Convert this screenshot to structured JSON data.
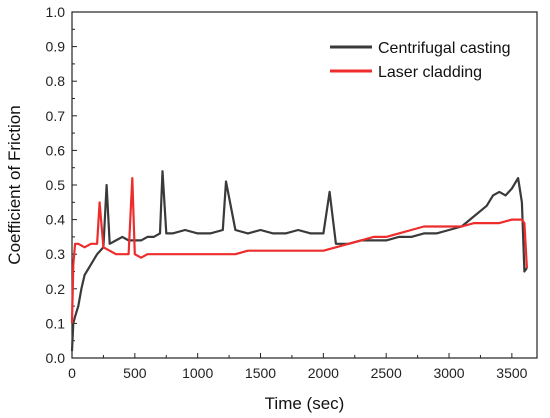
{
  "chart_data": {
    "type": "line",
    "title": "",
    "xlabel": "Time (sec)",
    "ylabel": "Coefficient of Friction",
    "xlim": [
      0,
      3700
    ],
    "ylim": [
      0,
      1.0
    ],
    "x_ticks": [
      0,
      500,
      1000,
      1500,
      2000,
      2500,
      3000,
      3500
    ],
    "x_tick_labels": [
      "0",
      "500",
      "1000",
      "1500",
      "2000",
      "2500",
      "3000",
      "3500"
    ],
    "y_ticks": [
      0,
      0.1,
      0.2,
      0.3,
      0.4,
      0.5,
      0.6,
      0.7,
      0.8,
      0.9,
      1.0
    ],
    "y_tick_labels": [
      "0.0",
      "0.1",
      "0.2",
      "0.3",
      "0.4",
      "0.5",
      "0.6",
      "0.7",
      "0.8",
      "0.9",
      "1.0"
    ],
    "grid": false,
    "legend_position": "top-right",
    "series": [
      {
        "name": "Centrifugal casting",
        "color": "#3a3a3a",
        "x": [
          0,
          10,
          25,
          50,
          75,
          100,
          150,
          200,
          250,
          275,
          300,
          350,
          400,
          450,
          500,
          550,
          600,
          650,
          700,
          720,
          750,
          800,
          900,
          1000,
          1100,
          1200,
          1225,
          1300,
          1400,
          1500,
          1600,
          1700,
          1800,
          1900,
          2000,
          2050,
          2100,
          2200,
          2300,
          2400,
          2500,
          2600,
          2700,
          2800,
          2900,
          3000,
          3100,
          3200,
          3300,
          3350,
          3400,
          3450,
          3500,
          3550,
          3580,
          3600,
          3620
        ],
        "y": [
          0.02,
          0.1,
          0.12,
          0.15,
          0.2,
          0.24,
          0.27,
          0.3,
          0.32,
          0.5,
          0.33,
          0.34,
          0.35,
          0.34,
          0.34,
          0.34,
          0.35,
          0.35,
          0.36,
          0.54,
          0.36,
          0.36,
          0.37,
          0.36,
          0.36,
          0.37,
          0.51,
          0.37,
          0.36,
          0.37,
          0.36,
          0.36,
          0.37,
          0.36,
          0.36,
          0.48,
          0.33,
          0.33,
          0.34,
          0.34,
          0.34,
          0.35,
          0.35,
          0.36,
          0.36,
          0.37,
          0.38,
          0.41,
          0.44,
          0.47,
          0.48,
          0.47,
          0.49,
          0.52,
          0.45,
          0.25,
          0.26
        ]
      },
      {
        "name": "Laser cladding",
        "color": "#ee2c2c",
        "x": [
          0,
          10,
          25,
          50,
          100,
          150,
          200,
          220,
          250,
          300,
          350,
          400,
          450,
          480,
          500,
          550,
          600,
          650,
          700,
          800,
          900,
          1000,
          1100,
          1200,
          1300,
          1400,
          1500,
          1600,
          1700,
          1800,
          1900,
          2000,
          2100,
          2200,
          2300,
          2400,
          2500,
          2600,
          2700,
          2800,
          2900,
          3000,
          3100,
          3200,
          3300,
          3400,
          3500,
          3550,
          3580,
          3600,
          3620
        ],
        "y": [
          0.1,
          0.27,
          0.33,
          0.33,
          0.32,
          0.33,
          0.33,
          0.45,
          0.32,
          0.31,
          0.3,
          0.3,
          0.3,
          0.52,
          0.3,
          0.29,
          0.3,
          0.3,
          0.3,
          0.3,
          0.3,
          0.3,
          0.3,
          0.3,
          0.3,
          0.31,
          0.31,
          0.31,
          0.31,
          0.31,
          0.31,
          0.31,
          0.32,
          0.33,
          0.34,
          0.35,
          0.35,
          0.36,
          0.37,
          0.38,
          0.38,
          0.38,
          0.38,
          0.39,
          0.39,
          0.39,
          0.4,
          0.4,
          0.4,
          0.39,
          0.26
        ]
      }
    ]
  }
}
